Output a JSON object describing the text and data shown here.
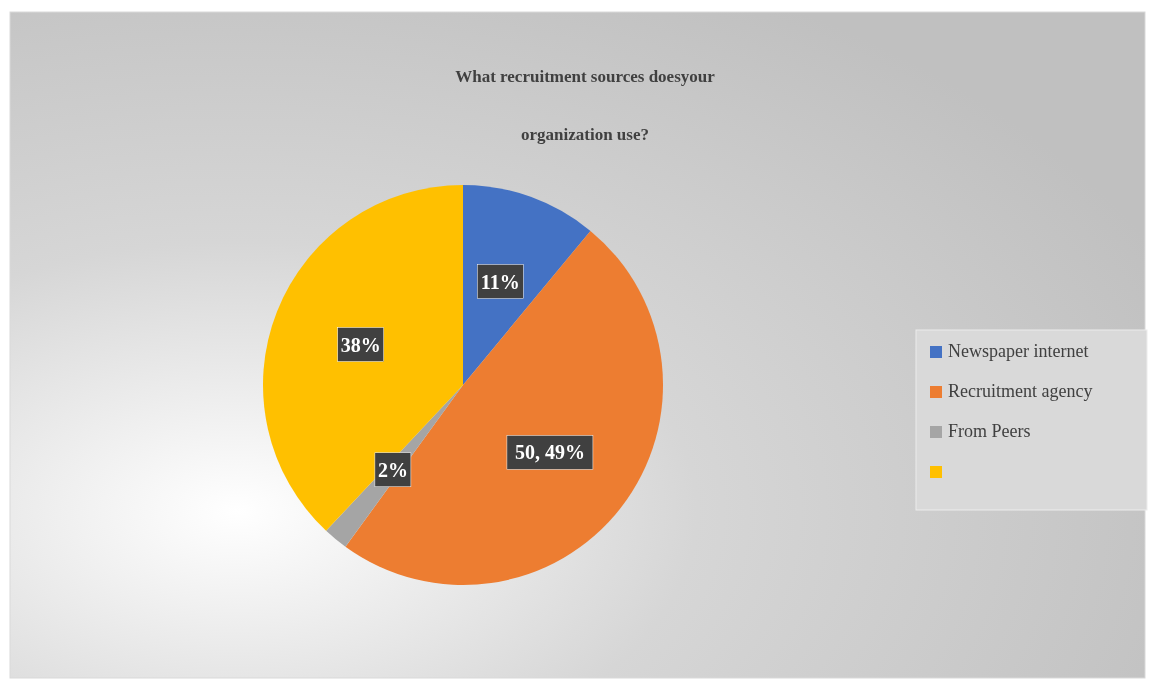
{
  "chart_data": {
    "type": "pie",
    "title": "What recruitment sources doesyour\norganization use?",
    "categories": [
      "Newspaper internet",
      "Recruitment agency",
      "From Peers",
      null
    ],
    "values": [
      11,
      49,
      2,
      38
    ],
    "colors": [
      "#4472c4",
      "#ed7d31",
      "#a5a5a5",
      "#ffc000"
    ],
    "value_labels": [
      "11%",
      "50, 49%",
      "2%",
      "38%"
    ],
    "legend": "right"
  }
}
